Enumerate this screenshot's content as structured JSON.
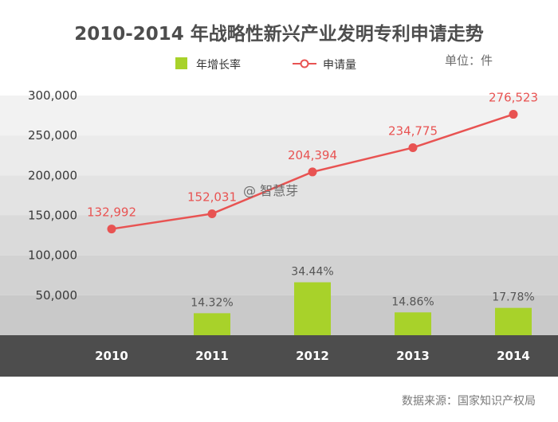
{
  "title": "2010-2014 年战略性新兴产业发明专利申请走势",
  "unit": "单位：件",
  "watermark": "@ 智慧芽",
  "source": "数据来源：国家知识产权局",
  "legend": {
    "bar": "年增长率",
    "line": "申请量"
  },
  "colors": {
    "line": "#e85352",
    "bar": "#a8d22a",
    "axis_band": "#4d4d4d"
  },
  "chart_data": {
    "type": "bar+line",
    "title": "2010-2014 年战略性新兴产业发明专利申请走势",
    "categories": [
      "2010",
      "2011",
      "2012",
      "2013",
      "2014"
    ],
    "y_tick_labels": [
      "50,000",
      "100,000",
      "150,000",
      "200,000",
      "250,000",
      "300,000"
    ],
    "ylim": [
      0,
      300000
    ],
    "series": [
      {
        "name": "申请量",
        "kind": "line",
        "values": [
          132992,
          152031,
          204394,
          234775,
          276523
        ],
        "labels": [
          "132,992",
          "152,031",
          "204,394",
          "234,775",
          "276,523"
        ]
      },
      {
        "name": "年增长率",
        "kind": "bar",
        "values": [
          null,
          14.32,
          34.44,
          14.86,
          17.78
        ],
        "labels": [
          "",
          "14.32%",
          "34.44%",
          "14.86%",
          "17.78%"
        ]
      }
    ]
  }
}
